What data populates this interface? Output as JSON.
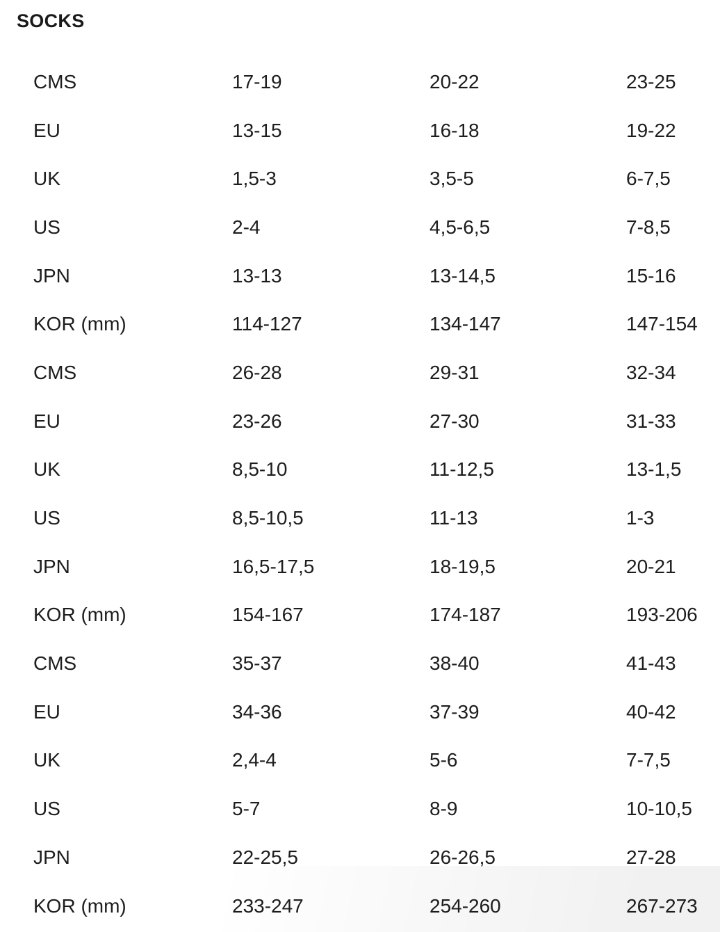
{
  "page": {
    "title": "SOCKS"
  },
  "colors": {
    "background": "#ffffff",
    "text": "#1d1d1d",
    "bottom_shade": "#ededed"
  },
  "table": {
    "rows": [
      {
        "label": "CMS",
        "values": [
          "17-19",
          "20-22",
          "23-25"
        ]
      },
      {
        "label": "EU",
        "values": [
          "13-15",
          "16-18",
          "19-22"
        ]
      },
      {
        "label": "UK",
        "values": [
          "1,5-3",
          "3,5-5",
          "6-7,5"
        ]
      },
      {
        "label": "US",
        "values": [
          "2-4",
          "4,5-6,5",
          "7-8,5"
        ]
      },
      {
        "label": "JPN",
        "values": [
          "13-13",
          "13-14,5",
          "15-16"
        ]
      },
      {
        "label": "KOR (mm)",
        "values": [
          "114-127",
          "134-147",
          "147-154"
        ]
      },
      {
        "label": "CMS",
        "values": [
          "26-28",
          "29-31",
          "32-34"
        ]
      },
      {
        "label": "EU",
        "values": [
          "23-26",
          "27-30",
          "31-33"
        ]
      },
      {
        "label": "UK",
        "values": [
          "8,5-10",
          "11-12,5",
          "13-1,5"
        ]
      },
      {
        "label": "US",
        "values": [
          "8,5-10,5",
          "11-13",
          "1-3"
        ]
      },
      {
        "label": "JPN",
        "values": [
          "16,5-17,5",
          "18-19,5",
          "20-21"
        ]
      },
      {
        "label": "KOR (mm)",
        "values": [
          "154-167",
          "174-187",
          "193-206"
        ]
      },
      {
        "label": "CMS",
        "values": [
          "35-37",
          "38-40",
          "41-43"
        ]
      },
      {
        "label": "EU",
        "values": [
          "34-36",
          "37-39",
          "40-42"
        ]
      },
      {
        "label": "UK",
        "values": [
          "2,4-4",
          "5-6",
          "7-7,5"
        ]
      },
      {
        "label": "US",
        "values": [
          "5-7",
          "8-9",
          "10-10,5"
        ]
      },
      {
        "label": "JPN",
        "values": [
          "22-25,5",
          "26-26,5",
          "27-28"
        ]
      },
      {
        "label": "KOR (mm)",
        "values": [
          "233-247",
          "254-260",
          "267-273"
        ]
      }
    ]
  }
}
